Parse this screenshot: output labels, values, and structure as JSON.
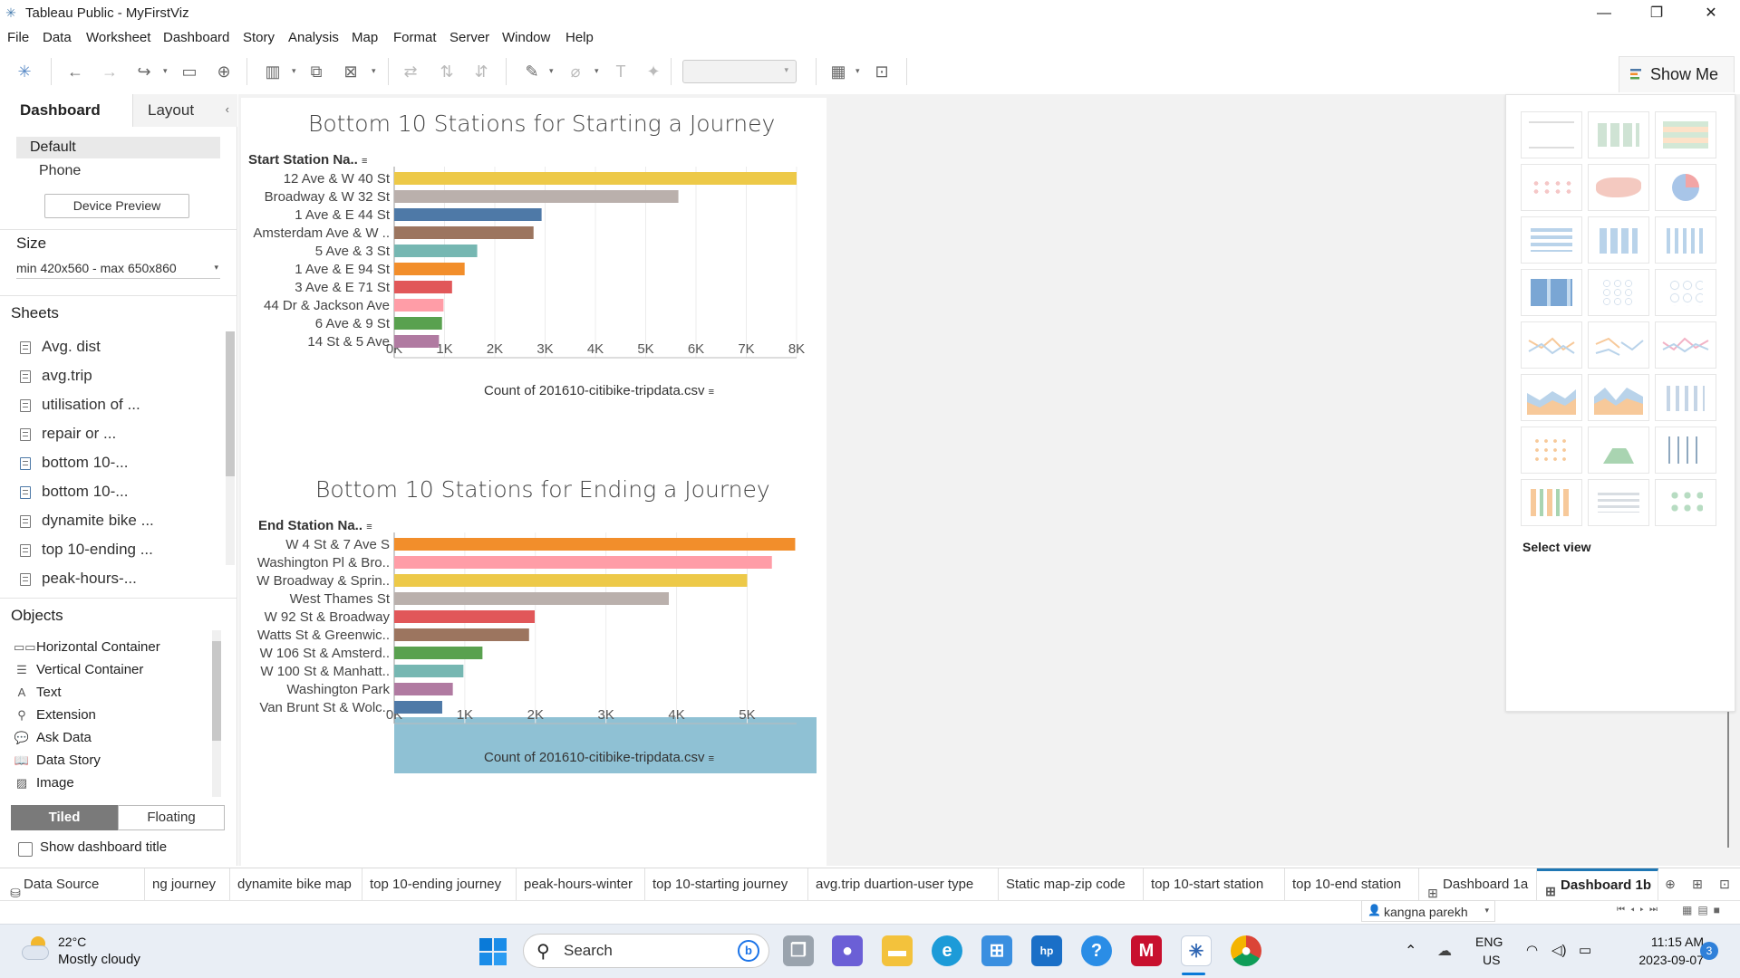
{
  "window": {
    "title": "Tableau Public - MyFirstViz",
    "controls": [
      "minimize-icon",
      "restore-icon",
      "close-icon"
    ]
  },
  "menu": [
    "File",
    "Data",
    "Worksheet",
    "Dashboard",
    "Story",
    "Analysis",
    "Map",
    "Format",
    "Server",
    "Window",
    "Help"
  ],
  "toolbar": {
    "show_me_label": "Show Me"
  },
  "left_panel": {
    "tab_dashboard": "Dashboard",
    "tab_layout": "Layout",
    "devices": [
      "Default",
      "Phone"
    ],
    "device_preview_label": "Device Preview",
    "size_title": "Size",
    "size_value": "min 420x560 - max 650x860",
    "sheets_title": "Sheets",
    "sheets": [
      "Avg. dist",
      "avg.trip",
      "utilisation of ...",
      "repair or ...",
      "bottom 10-...",
      "bottom 10-...",
      "dynamite bike ...",
      "top 10-ending ...",
      "peak-hours-..."
    ],
    "objects_title": "Objects",
    "objects": [
      "Horizontal Container",
      "Vertical Container",
      "Text",
      "Extension",
      "Ask Data",
      "Data Story",
      "Image"
    ],
    "tiled_label": "Tiled",
    "floating_label": "Floating",
    "show_title_label": "Show dashboard title"
  },
  "charts": {
    "start": {
      "title": "Bottom 10 Stations for Starting a Journey",
      "row_header": "Start Station Na..",
      "axis_title": "Count of 201610-citibike-tripdata.csv"
    },
    "end": {
      "title": "Bottom 10 Stations for Ending a Journey",
      "row_header": "End Station Na..",
      "axis_title": "Count of 201610-citibike-tripdata.csv"
    }
  },
  "chart_data": [
    {
      "type": "bar",
      "orientation": "horizontal",
      "title": "Bottom 10 Stations for Starting a Journey",
      "ylabel": "Start Station Na..",
      "xlabel": "Count of 201610-citibike-tripdata.csv",
      "categories": [
        "12 Ave & W 40 St",
        "Broadway & W 32 St",
        "1 Ave & E 44 St",
        "Amsterdam Ave & W ..",
        "5 Ave & 3 St",
        "1 Ave & E 94 St",
        "3 Ave & E 71 St",
        "44 Dr & Jackson Ave",
        "6 Ave & 9 St",
        "14 St & 5 Ave"
      ],
      "values": [
        8000,
        5650,
        2930,
        2770,
        1650,
        1400,
        1150,
        980,
        950,
        890
      ],
      "colors": [
        "#edc948",
        "#bab0ac",
        "#4e79a7",
        "#9c755f",
        "#76b7b2",
        "#f28e2b",
        "#e15759",
        "#ff9da7",
        "#59a14f",
        "#b07aa1"
      ],
      "ticks": [
        "0K",
        "1K",
        "2K",
        "3K",
        "4K",
        "5K",
        "6K",
        "7K",
        "8K"
      ],
      "xlim": [
        0,
        8000
      ],
      "grid": true
    },
    {
      "type": "bar",
      "orientation": "horizontal",
      "title": "Bottom 10 Stations for Ending a Journey",
      "ylabel": "End Station Na..",
      "xlabel": "Count of 201610-citibike-tripdata.csv",
      "categories": [
        "W 4 St & 7 Ave S",
        "Washington Pl & Bro..",
        "W Broadway & Sprin..",
        "West Thames St",
        "W 92 St & Broadway",
        "Watts St & Greenwic..",
        "W 106 St & Amsterd..",
        "W 100 St & Manhatt..",
        "Washington Park",
        "Van Brunt St & Wolc.."
      ],
      "values": [
        5680,
        5350,
        5000,
        3890,
        1990,
        1910,
        1250,
        980,
        830,
        680
      ],
      "colors": [
        "#f28e2b",
        "#ff9da7",
        "#edc948",
        "#bab0ac",
        "#e15759",
        "#9c755f",
        "#59a14f",
        "#76b7b2",
        "#b07aa1",
        "#4e79a7"
      ],
      "ticks": [
        "0K",
        "1K",
        "2K",
        "3K",
        "4K",
        "5K"
      ],
      "xlim": [
        0,
        5700
      ],
      "grid": true
    }
  ],
  "show_me": {
    "select_view_label": "Select view"
  },
  "sheet_tabs": {
    "data_source": "Data Source",
    "tabs": [
      "ng journey",
      "dynamite bike map",
      "top 10-ending journey",
      "peak-hours-winter",
      "top 10-starting journey",
      "avg.trip duartion-user type",
      "Static map-zip code",
      "top 10-start station",
      "top 10-end station",
      "Dashboard 1a",
      "Dashboard 1b"
    ],
    "active": "Dashboard 1b"
  },
  "status": {
    "user": "kangna parekh"
  },
  "taskbar": {
    "weather_temp": "22°C",
    "weather_desc": "Mostly cloudy",
    "search_label": "Search",
    "lang_top": "ENG",
    "lang_bottom": "US",
    "time": "11:15 AM",
    "date": "2023-09-07",
    "notification_count": "3"
  }
}
